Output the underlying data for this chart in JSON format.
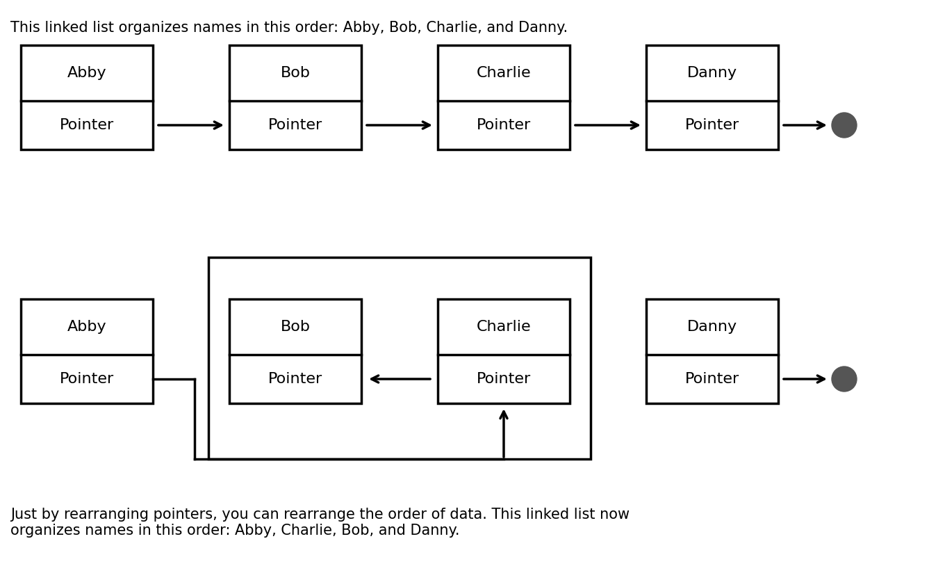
{
  "title_top": "This linked list organizes names in this order: Abby, Bob, Charlie, and Danny.",
  "title_bottom": "Just by rearranging pointers, you can rearrange the order of data. This linked list now\norganizes names in this order: Abby, Charlie, Bob, and Danny.",
  "top_nodes": [
    "Abby",
    "Bob",
    "Charlie",
    "Danny"
  ],
  "bottom_nodes": [
    "Abby",
    "Bob",
    "Charlie",
    "Danny"
  ],
  "node_label": "Pointer",
  "background_color": "#ffffff",
  "box_edge_color": "#000000",
  "text_color": "#000000",
  "arrow_color": "#000000",
  "null_color": "#555555",
  "font_size": 16,
  "title_font_size": 15,
  "lw": 2.5
}
